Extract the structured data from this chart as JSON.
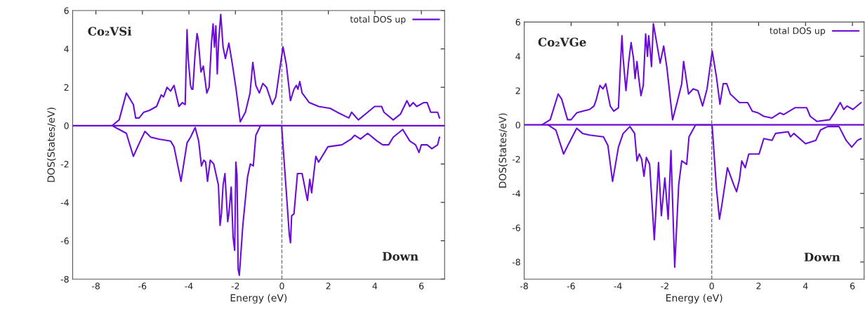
{
  "chart_data": [
    {
      "type": "line",
      "xlabel": "Energy (eV)",
      "ylabel": "DOS(States/eV)",
      "annotations": [
        "Co₂VSi",
        "Down"
      ],
      "xlim": [
        -9,
        7
      ],
      "ylim": [
        -8,
        6
      ],
      "xticks": [
        -8,
        -6,
        -4,
        -2,
        0,
        2,
        4,
        6
      ],
      "yticks": [
        -8,
        -6,
        -4,
        -2,
        0,
        2,
        4,
        6
      ],
      "legend": "top right",
      "grid": false,
      "line_style": "solid",
      "marker": "none",
      "ref_lines": [
        {
          "axis": "y",
          "value": 0,
          "color": "#6a0dd6",
          "line_style": "solid"
        },
        {
          "axis": "x",
          "value": 0,
          "color": "#777777",
          "line_style": "dashed"
        }
      ],
      "series": [
        {
          "name": "total DOS up",
          "color": "#6a0dd6",
          "x": [
            -7.3,
            -7.0,
            -6.69,
            -6.39,
            -6.29,
            -6.14,
            -5.94,
            -5.69,
            -5.39,
            -5.19,
            -5.09,
            -4.94,
            -4.79,
            -4.64,
            -4.43,
            -4.28,
            -4.16,
            -4.08,
            -4.03,
            -3.93,
            -3.88,
            -3.83,
            -3.73,
            -3.65,
            -3.6,
            -3.48,
            -3.38,
            -3.23,
            -3.13,
            -3.03,
            -2.96,
            -2.9,
            -2.84,
            -2.78,
            -2.72,
            -2.63,
            -2.53,
            -2.43,
            -2.28,
            -2.13,
            -1.97,
            -1.79,
            -1.57,
            -1.37,
            -1.25,
            -1.12,
            -0.97,
            -0.82,
            -0.66,
            -0.41,
            -0.26,
            -0.06,
            0.05,
            0.19,
            0.37,
            0.52,
            0.62,
            0.69,
            0.77,
            0.87,
            1.18,
            1.58,
            2.08,
            2.38,
            2.88,
            3.0,
            3.29,
            3.79,
            3.99,
            4.29,
            4.39,
            4.79,
            5.1,
            5.38,
            5.5,
            5.65,
            5.8,
            6.1,
            6.25,
            6.4,
            6.7,
            6.78
          ],
          "values": [
            0,
            0.3,
            1.7,
            1.1,
            0.4,
            0.4,
            0.7,
            0.8,
            1.0,
            1.6,
            1.5,
            2.0,
            1.8,
            2.1,
            1.0,
            1.2,
            1.1,
            5.0,
            3.5,
            2.1,
            1.9,
            1.9,
            3.8,
            4.8,
            4.5,
            2.8,
            3.1,
            1.7,
            2.0,
            4.3,
            5.3,
            4.1,
            5.2,
            2.7,
            4.4,
            5.8,
            4.1,
            3.5,
            4.3,
            3.2,
            1.9,
            0.2,
            0.7,
            1.7,
            3.3,
            2.1,
            1.7,
            2.2,
            2.0,
            1.1,
            1.5,
            3.2,
            4.1,
            3.2,
            1.3,
            1.9,
            2.1,
            1.9,
            2.3,
            1.7,
            1.2,
            1.0,
            0.9,
            0.7,
            0.4,
            0.7,
            0.3,
            0.8,
            1.0,
            1.0,
            0.7,
            0.3,
            0.6,
            1.3,
            1.0,
            1.2,
            1.0,
            1.2,
            1.2,
            0.7,
            0.7,
            0.4
          ]
        },
        {
          "color": "#6a0dd6",
          "x": [
            -7.3,
            -7.0,
            -6.69,
            -6.39,
            -6.09,
            -5.89,
            -5.64,
            -5.29,
            -4.79,
            -4.64,
            -4.34,
            -4.08,
            -3.93,
            -3.73,
            -3.58,
            -3.46,
            -3.36,
            -3.28,
            -3.2,
            -3.08,
            -2.93,
            -2.73,
            -2.66,
            -2.6,
            -2.53,
            -2.45,
            -2.33,
            -2.28,
            -2.18,
            -2.1,
            -2.03,
            -1.98,
            -1.93,
            -1.88,
            -1.83,
            -1.68,
            -1.48,
            -1.36,
            -1.23,
            -1.12,
            -0.92,
            -0.01,
            0.0,
            0.17,
            0.32,
            0.37,
            0.42,
            0.52,
            0.67,
            0.87,
            1.1,
            1.2,
            1.28,
            1.46,
            1.58,
            1.98,
            2.58,
            2.98,
            3.13,
            3.38,
            3.69,
            4.09,
            4.34,
            4.59,
            4.79,
            5.2,
            5.5,
            5.75,
            5.9,
            6.0,
            6.25,
            6.45,
            6.7,
            6.78
          ],
          "values": [
            0,
            -0.2,
            -0.4,
            -1.6,
            -0.8,
            -0.3,
            -0.6,
            -0.7,
            -0.8,
            -1.1,
            -2.9,
            -0.9,
            -0.6,
            -0.1,
            -0.8,
            -2.1,
            -1.8,
            -1.9,
            -2.9,
            -1.8,
            -2.0,
            -3.1,
            -5.2,
            -4.6,
            -3.1,
            -2.5,
            -5.0,
            -4.6,
            -3.2,
            -5.8,
            -6.5,
            -1.9,
            -2.6,
            -7.5,
            -7.8,
            -5.2,
            -2.7,
            -2.0,
            -2.1,
            -0.5,
            0,
            0,
            -0.2,
            -3.1,
            -5.7,
            -6.1,
            -4.7,
            -4.6,
            -2.5,
            -2.5,
            -3.9,
            -2.8,
            -3.5,
            -1.6,
            -1.9,
            -1.1,
            -1.0,
            -0.7,
            -0.5,
            -0.7,
            -0.4,
            -0.8,
            -1.0,
            -1.0,
            -0.6,
            -0.2,
            -0.8,
            -1.0,
            -1.4,
            -1.0,
            -1.0,
            -1.2,
            -1.0,
            -0.6
          ]
        }
      ]
    },
    {
      "type": "line",
      "xlabel": "Energy (eV)",
      "ylabel": "DOS(States/eV)",
      "annotations": [
        "Co₂VGe",
        "Down"
      ],
      "xlim": [
        -8,
        6.5
      ],
      "ylim": [
        -9,
        6
      ],
      "xticks": [
        -8,
        -6,
        -4,
        -2,
        0,
        2,
        4,
        6
      ],
      "yticks": [
        -8,
        -6,
        -4,
        -2,
        0,
        2,
        4,
        6
      ],
      "legend": "top right",
      "grid": false,
      "line_style": "solid",
      "marker": "none",
      "ref_lines": [
        {
          "axis": "y",
          "value": 0,
          "color": "#6a0dd6",
          "line_style": "solid"
        },
        {
          "axis": "x",
          "value": 0,
          "color": "#777777",
          "line_style": "dashed"
        }
      ],
      "series": [
        {
          "name": "total DOS up",
          "color": "#6a0dd6",
          "x": [
            -7.24,
            -6.89,
            -6.55,
            -6.4,
            -6.15,
            -6.0,
            -5.76,
            -5.51,
            -5.21,
            -5.02,
            -4.92,
            -4.77,
            -4.64,
            -4.52,
            -4.33,
            -4.18,
            -3.98,
            -3.88,
            -3.83,
            -3.78,
            -3.66,
            -3.54,
            -3.44,
            -3.34,
            -3.27,
            -3.19,
            -3.12,
            -3.02,
            -2.92,
            -2.82,
            -2.74,
            -2.69,
            -2.63,
            -2.57,
            -2.49,
            -2.35,
            -2.2,
            -2.05,
            -1.91,
            -1.67,
            -1.48,
            -1.28,
            -1.2,
            -0.99,
            -0.79,
            -0.59,
            -0.39,
            -0.2,
            0.02,
            0.2,
            0.35,
            0.49,
            0.64,
            0.79,
            1.18,
            1.53,
            1.73,
            1.97,
            2.22,
            2.57,
            2.91,
            3.06,
            3.55,
            4.05,
            4.2,
            4.49,
            5.03,
            5.23,
            5.48,
            5.63,
            5.77,
            6.02,
            6.37
          ],
          "values": [
            0,
            0.3,
            1.8,
            1.5,
            0.3,
            0.3,
            0.7,
            0.8,
            0.9,
            1.1,
            1.5,
            2.3,
            2.1,
            2.4,
            1.1,
            0.8,
            1.0,
            3.9,
            5.2,
            3.9,
            2.0,
            3.7,
            4.8,
            3.9,
            2.7,
            3.7,
            2.8,
            1.7,
            2.3,
            5.3,
            4.0,
            5.2,
            4.4,
            3.4,
            5.9,
            4.8,
            3.6,
            4.6,
            3.3,
            0.3,
            1.3,
            2.4,
            3.7,
            1.8,
            2.1,
            2.0,
            1.1,
            2.1,
            4.3,
            2.8,
            1.2,
            2.4,
            2.4,
            1.8,
            1.3,
            1.3,
            0.8,
            0.7,
            0.5,
            0.4,
            0.7,
            0.6,
            1.0,
            1.0,
            0.5,
            0.2,
            0.3,
            0.7,
            1.3,
            0.9,
            1.1,
            0.9,
            1.3
          ]
        },
        {
          "color": "#6a0dd6",
          "x": [
            -6.99,
            -6.65,
            -6.32,
            -6.1,
            -5.76,
            -5.51,
            -5.21,
            -4.62,
            -4.43,
            -4.23,
            -3.98,
            -3.78,
            -3.49,
            -3.29,
            -3.19,
            -3.09,
            -2.99,
            -2.89,
            -2.79,
            -2.65,
            -2.45,
            -2.27,
            -2.15,
            -2.0,
            -1.86,
            -1.74,
            -1.58,
            -1.41,
            -1.28,
            -1.07,
            -0.97,
            -0.69,
            0.0,
            0.02,
            0.2,
            0.33,
            0.44,
            0.67,
            0.94,
            1.06,
            1.18,
            1.28,
            1.43,
            1.58,
            2.02,
            2.22,
            2.57,
            2.72,
            3.26,
            3.36,
            3.5,
            4.0,
            4.44,
            4.64,
            4.94,
            5.43,
            5.73,
            5.97,
            6.22,
            6.37
          ],
          "values": [
            0,
            -0.3,
            -1.7,
            -1.1,
            -0.2,
            -0.5,
            -0.6,
            -0.7,
            -1.2,
            -3.3,
            -1.3,
            -0.5,
            -0.1,
            -0.5,
            -2.1,
            -1.7,
            -2.0,
            -3.0,
            -1.9,
            -2.3,
            -6.7,
            -2.2,
            -5.3,
            -3.1,
            -5.5,
            -1.5,
            -8.3,
            -3.5,
            -2.1,
            -2.3,
            -0.7,
            0,
            0,
            -0.1,
            -3.7,
            -5.5,
            -4.6,
            -2.5,
            -3.5,
            -3.9,
            -3.2,
            -2.1,
            -2.5,
            -1.7,
            -1.7,
            -0.8,
            -0.9,
            -0.5,
            -0.4,
            -0.7,
            -0.5,
            -1.1,
            -0.9,
            -0.3,
            -0.1,
            -0.1,
            -0.9,
            -1.3,
            -0.9,
            -0.8
          ]
        }
      ]
    }
  ]
}
